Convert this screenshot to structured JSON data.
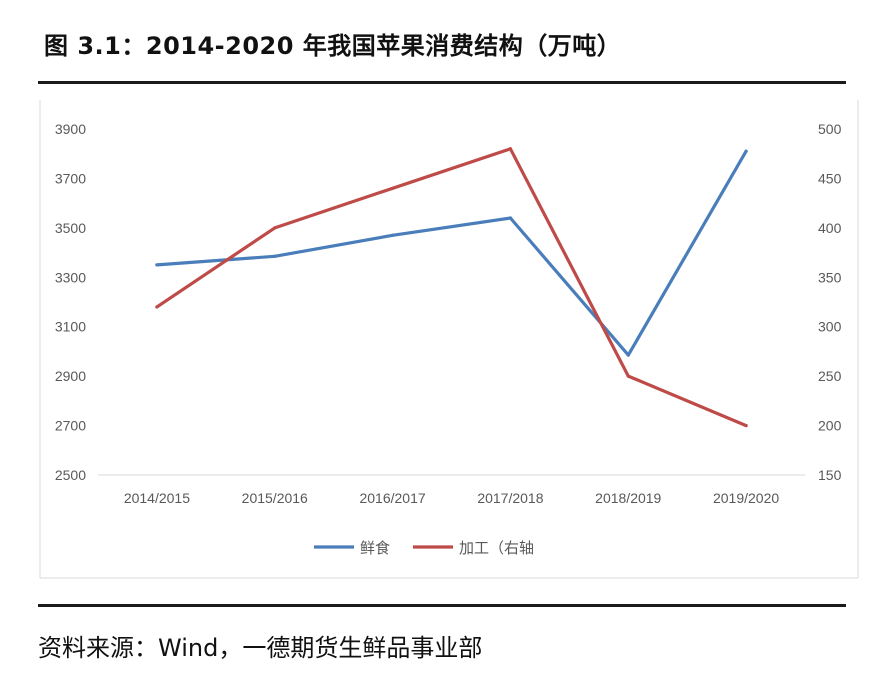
{
  "figure": {
    "title": "图 3.1：2014-2020 年我国苹果消费结构（万吨）",
    "source": "资料来源：Wind，一德期货生鲜品事业部"
  },
  "chart_data": {
    "type": "line",
    "title": "图 3.1：2014-2020 年我国苹果消费结构（万吨）",
    "categories": [
      "2014/2015",
      "2015/2016",
      "2016/2017",
      "2017/2018",
      "2018/2019",
      "2019/2020"
    ],
    "series": [
      {
        "name": "鲜食",
        "axis": "left",
        "color": "#4a7ebb",
        "values": [
          3350,
          3385,
          3470,
          3540,
          2985,
          3810
        ]
      },
      {
        "name": "加工（右轴",
        "axis": "right",
        "color": "#be4b48",
        "values": [
          320,
          400,
          440,
          480,
          250,
          200
        ]
      }
    ],
    "y_left": {
      "min": 2500,
      "max": 3900,
      "ticks": [
        2500,
        2700,
        2900,
        3100,
        3300,
        3500,
        3700,
        3900
      ]
    },
    "y_right": {
      "min": 150,
      "max": 500,
      "ticks": [
        150,
        200,
        250,
        300,
        350,
        400,
        450,
        500
      ]
    },
    "grid": false,
    "legend_position": "bottom",
    "xlabel": "",
    "ylabel": ""
  }
}
